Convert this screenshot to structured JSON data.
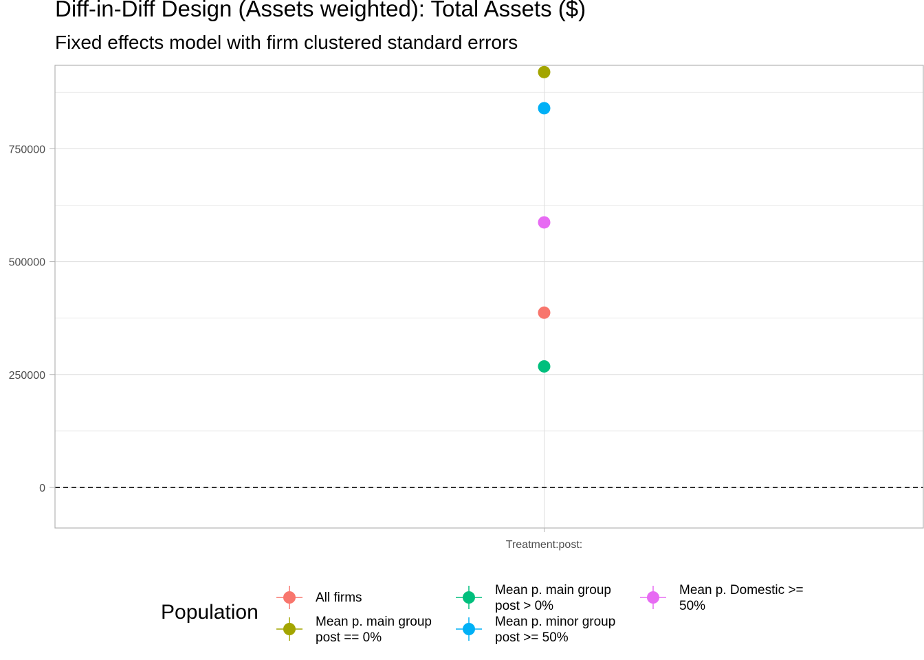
{
  "chart_data": {
    "type": "scatter",
    "title": "Diff-in-Diff Design (Assets weighted): Total Assets ($)",
    "subtitle": "Fixed effects model with firm clustered standard errors",
    "xlabel": "",
    "ylabel": "",
    "categories": [
      "Treatment:post:"
    ],
    "ylim": [
      -90000,
      935000
    ],
    "yticks": [
      0,
      250000,
      500000,
      750000
    ],
    "ytick_labels": [
      "0",
      "250000",
      "500000",
      "750000"
    ],
    "reference_line": 0,
    "grid": true,
    "legend_title": "Population",
    "legend_position": "bottom",
    "series": [
      {
        "name": "All firms",
        "color": "#F8766D",
        "values": [
          387000
        ]
      },
      {
        "name": "Mean p. main group\npost == 0%",
        "color": "#A3A500",
        "values": [
          920000
        ]
      },
      {
        "name": "Mean p. main group\npost > 0%",
        "color": "#00BF7D",
        "values": [
          268000
        ]
      },
      {
        "name": "Mean p. minor group\npost >= 50%",
        "color": "#00B0F6",
        "values": [
          840000
        ]
      },
      {
        "name": "Mean p. Domestic >=\n50%",
        "color": "#E76BF3",
        "values": [
          587000
        ]
      }
    ]
  }
}
